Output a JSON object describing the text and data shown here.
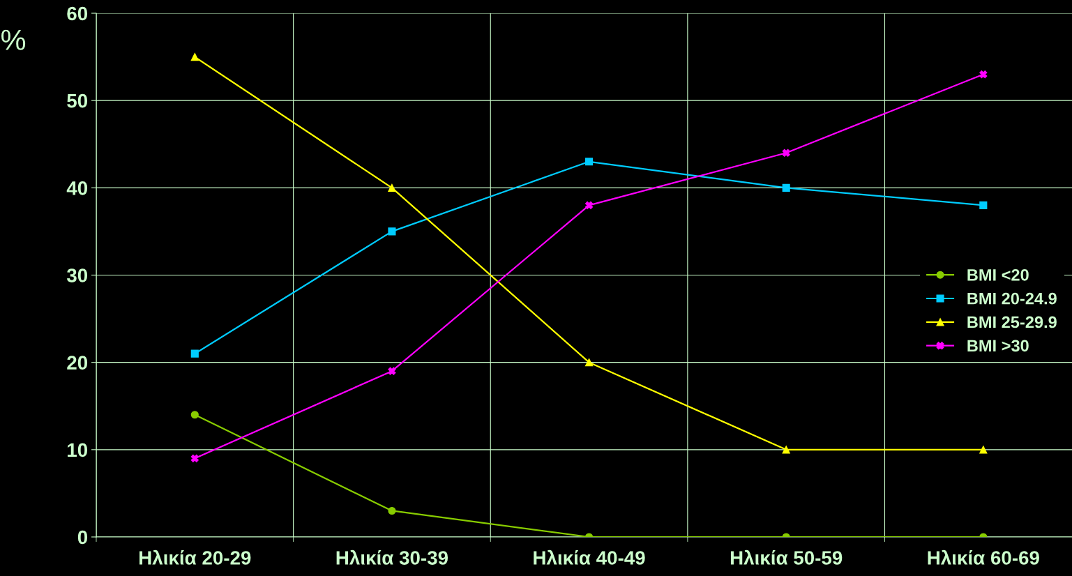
{
  "chart_data": {
    "type": "line",
    "ylabel": "%",
    "categories": [
      "Ηλικία 20-29",
      "Ηλικία 30-39",
      "Ηλικία 40-49",
      "Ηλικία 50-59",
      "Ηλικία 60-69"
    ],
    "series": [
      {
        "name": "BMI <20",
        "color": "#88cc00",
        "marker": "circle",
        "values": [
          14,
          3,
          0,
          0,
          0
        ]
      },
      {
        "name": "BMI 20-24.9",
        "color": "#00ccff",
        "marker": "square",
        "values": [
          21,
          35,
          43,
          40,
          38
        ]
      },
      {
        "name": "BMI 25-29.9",
        "color": "#ffff00",
        "marker": "triangle",
        "values": [
          55,
          40,
          20,
          10,
          10
        ]
      },
      {
        "name": "BMI >30",
        "color": "#ff00ff",
        "marker": "cross",
        "values": [
          9,
          19,
          38,
          44,
          53
        ]
      }
    ],
    "ylim": [
      0,
      60
    ],
    "yticks": [
      0,
      10,
      20,
      30,
      40,
      50,
      60
    ],
    "grid": true,
    "legend": "right",
    "line_style": "solid"
  }
}
